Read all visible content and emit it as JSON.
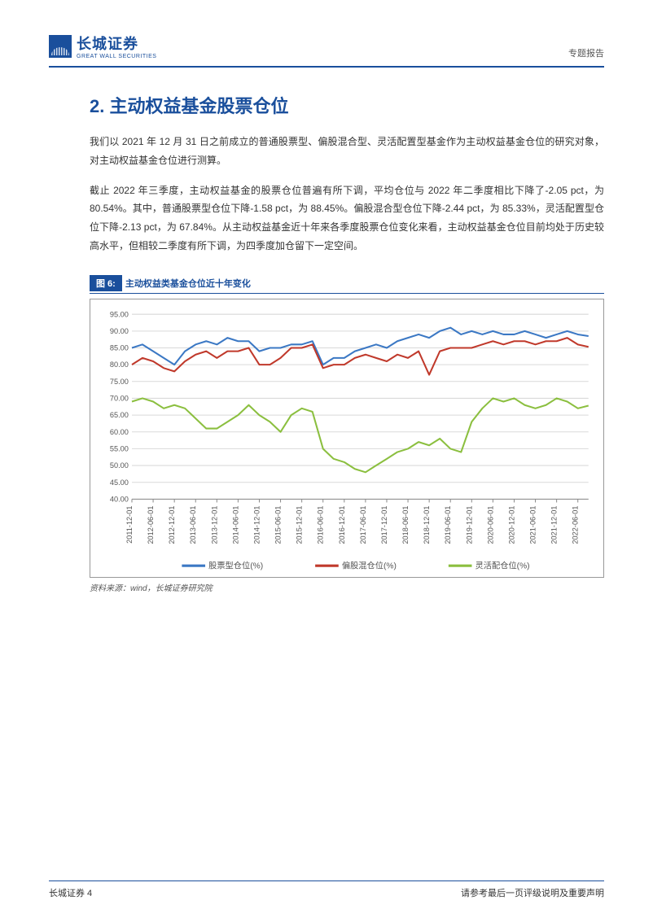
{
  "header": {
    "logo_cn": "长城证券",
    "logo_en": "GREAT WALL SECURITIES",
    "doc_type": "专题报告"
  },
  "section": {
    "title": "2. 主动权益基金股票仓位"
  },
  "paragraphs": {
    "p1": "我们以 2021 年 12 月 31 日之前成立的普通股票型、偏股混合型、灵活配置型基金作为主动权益基金仓位的研究对象，对主动权益基金仓位进行测算。",
    "p2": "截止 2022 年三季度，主动权益基金的股票仓位普遍有所下调，平均仓位与 2022 年二季度相比下降了-2.05 pct，为 80.54%。其中，普通股票型仓位下降-1.58 pct，为 88.45%。偏股混合型仓位下降-2.44 pct，为 85.33%，灵活配置型仓位下降-2.13 pct，为 67.84%。从主动权益基金近十年来各季度股票仓位变化来看，主动权益基金仓位目前均处于历史较高水平，但相较二季度有所下调，为四季度加仓留下一定空间。"
  },
  "figure": {
    "badge": "图 6:",
    "caption": "主动权益类基金仓位近十年变化",
    "source": "资料来源：wind，长城证券研究院"
  },
  "chart": {
    "type": "line",
    "ylim": [
      40,
      95
    ],
    "ytick_step": 5,
    "yticks": [
      "40.00",
      "45.00",
      "50.00",
      "55.00",
      "60.00",
      "65.00",
      "70.00",
      "75.00",
      "80.00",
      "85.00",
      "90.00",
      "95.00"
    ],
    "xticks": [
      "2011-12-01",
      "2012-06-01",
      "2012-12-01",
      "2013-06-01",
      "2013-12-01",
      "2014-06-01",
      "2014-12-01",
      "2015-06-01",
      "2015-12-01",
      "2016-06-01",
      "2016-12-01",
      "2017-06-01",
      "2017-12-01",
      "2018-06-01",
      "2018-12-01",
      "2019-06-01",
      "2019-12-01",
      "2020-06-01",
      "2020-12-01",
      "2021-06-01",
      "2021-12-01",
      "2022-06-01"
    ],
    "legend": {
      "s1": "股票型仓位(%)",
      "s2": "偏股混仓位(%)",
      "s3": "灵活配仓位(%)"
    },
    "colors": {
      "s1": "#3b78c4",
      "s2": "#c0392b",
      "s3": "#8bbf3f",
      "grid": "#d9d9d9",
      "axis": "#8a8a8a",
      "text": "#555555",
      "bg": "#ffffff"
    },
    "line_width": 2,
    "font_size_axis": 9,
    "font_size_legend": 10,
    "series": {
      "s1": [
        85,
        86,
        84,
        82,
        80,
        84,
        86,
        87,
        86,
        88,
        87,
        87,
        84,
        85,
        85,
        86,
        86,
        87,
        80,
        82,
        82,
        84,
        85,
        86,
        85,
        87,
        88,
        89,
        88,
        90,
        91,
        89,
        90,
        89,
        90,
        89,
        89,
        90,
        89,
        88,
        89,
        90,
        89,
        88.5
      ],
      "s2": [
        80,
        82,
        81,
        79,
        78,
        81,
        83,
        84,
        82,
        84,
        84,
        85,
        80,
        80,
        82,
        85,
        85,
        86,
        79,
        80,
        80,
        82,
        83,
        82,
        81,
        83,
        82,
        84,
        77,
        84,
        85,
        85,
        85,
        86,
        87,
        86,
        87,
        87,
        86,
        87,
        87,
        88,
        86,
        85.3
      ],
      "s3": [
        69,
        70,
        69,
        67,
        68,
        67,
        64,
        61,
        61,
        63,
        65,
        68,
        65,
        63,
        60,
        65,
        67,
        66,
        55,
        52,
        51,
        49,
        48,
        50,
        52,
        54,
        55,
        57,
        56,
        58,
        55,
        54,
        63,
        67,
        70,
        69,
        70,
        68,
        67,
        68,
        70,
        69,
        67,
        67.8
      ]
    }
  },
  "footer": {
    "left": "长城证券 4",
    "right": "请参考最后一页评级说明及重要声明"
  }
}
